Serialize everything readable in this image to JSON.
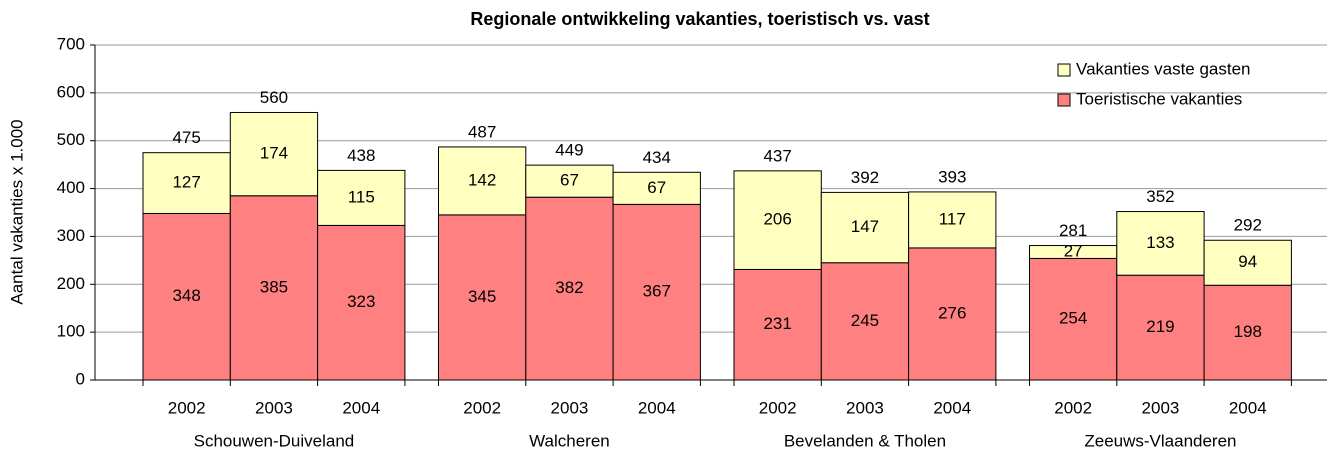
{
  "chart_data": {
    "type": "stacked_bar",
    "title": "Regionale ontwikkeling vakanties, toeristisch vs. vast",
    "y_label": "Aantal vakanties x 1.000",
    "groups": [
      "Schouwen-Duiveland",
      "Walcheren",
      "Bevelanden & Tholen",
      "Zeeuws-Vlaanderen"
    ],
    "categories": [
      "2002",
      "2003",
      "2004",
      "2002",
      "2003",
      "2004",
      "2002",
      "2003",
      "2004",
      "2002",
      "2003",
      "2004"
    ],
    "series": [
      {
        "name": "Toeristische vakanties",
        "color": "#ff8080",
        "values": [
          348,
          385,
          323,
          345,
          382,
          367,
          231,
          245,
          276,
          254,
          219,
          198
        ]
      },
      {
        "name": "Vakanties vaste gasten",
        "color": "#ffffc0",
        "values": [
          127,
          174,
          115,
          142,
          67,
          67,
          206,
          147,
          117,
          27,
          133,
          94
        ]
      }
    ],
    "total_labels": [
      475,
      560,
      438,
      487,
      449,
      434,
      437,
      392,
      393,
      281,
      352,
      292
    ],
    "ylim": [
      0,
      700
    ],
    "yticks": [
      0,
      100,
      200,
      300,
      400,
      500,
      600,
      700
    ],
    "grid": true,
    "legend": "top-right"
  }
}
